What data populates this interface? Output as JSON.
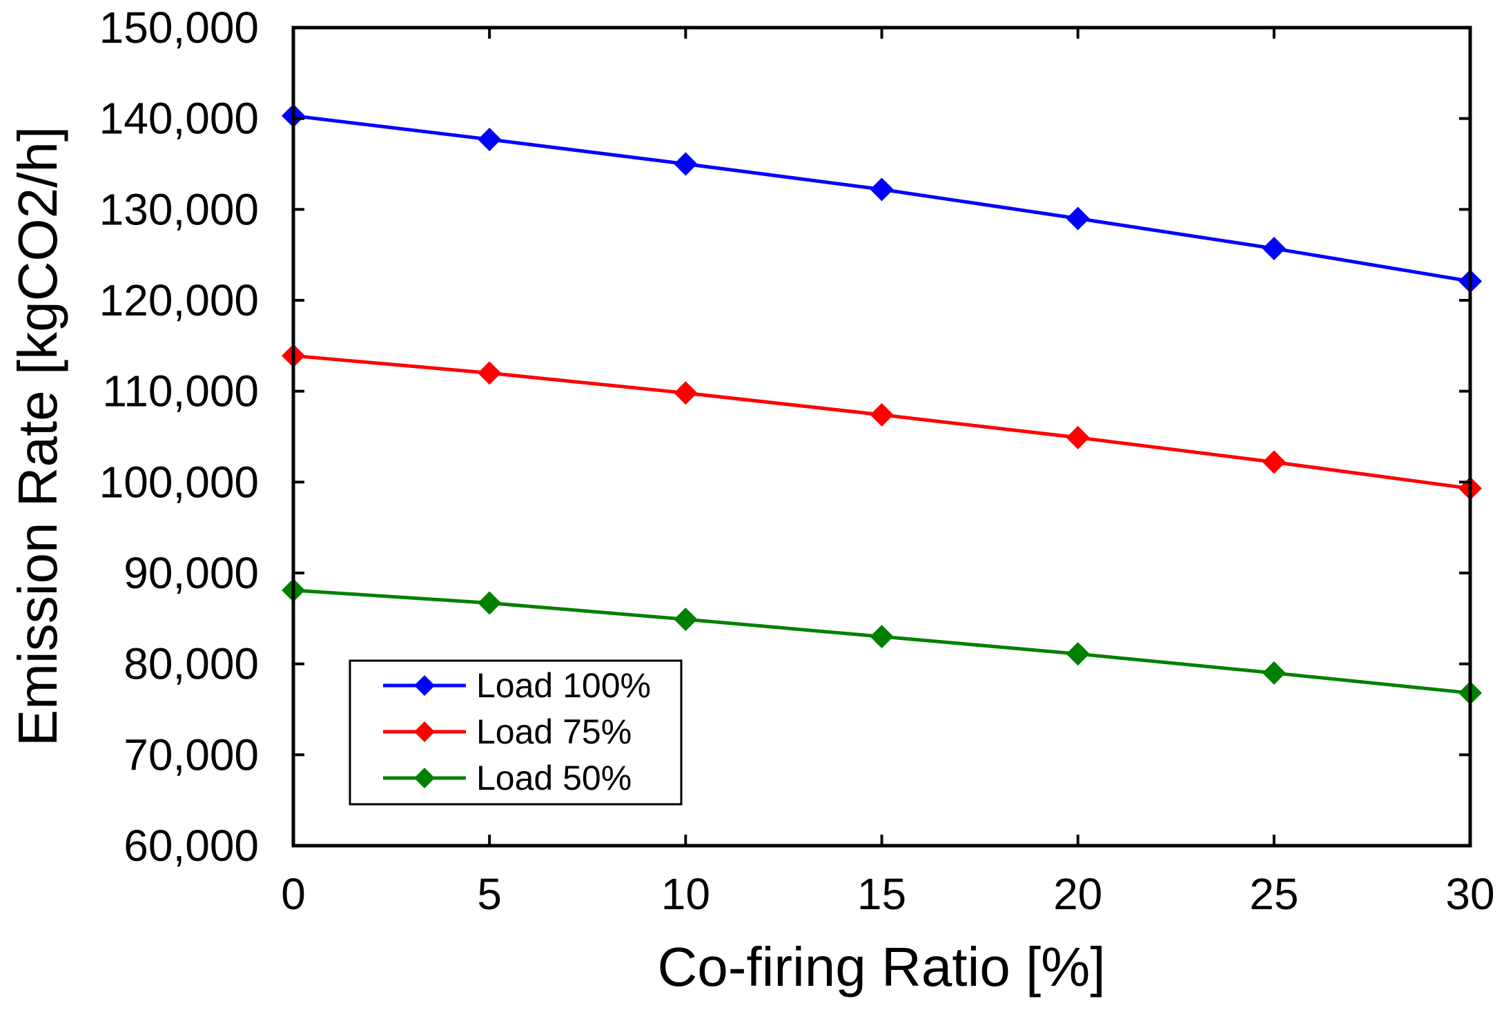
{
  "chart_data": {
    "type": "line",
    "title": "",
    "xlabel": "Co-firing Ratio [%]",
    "ylabel": "Emission Rate [kgCO2/h]",
    "x": [
      0,
      5,
      10,
      15,
      20,
      25,
      30
    ],
    "x_tick_labels": [
      "0",
      "5",
      "10",
      "15",
      "20",
      "25",
      "30"
    ],
    "xlim": [
      0,
      30
    ],
    "ylim": [
      60000,
      150000
    ],
    "y_ticks": [
      60000,
      70000,
      80000,
      90000,
      100000,
      110000,
      120000,
      130000,
      140000,
      150000
    ],
    "y_tick_labels": [
      "60,000",
      "70,000",
      "80,000",
      "90,000",
      "100,000",
      "110,000",
      "120,000",
      "130,000",
      "140,000",
      "150,000"
    ],
    "grid": false,
    "marker": "diamond",
    "legend_position": "bottom-left",
    "series": [
      {
        "name": "Load 100%",
        "color": "#0000FF",
        "values": [
          140300,
          137700,
          135000,
          132200,
          129000,
          125700,
          122100
        ]
      },
      {
        "name": "Load 75%",
        "color": "#FF0000",
        "values": [
          113900,
          112000,
          109800,
          107400,
          104900,
          102200,
          99300
        ]
      },
      {
        "name": "Load 50%",
        "color": "#008000",
        "values": [
          88100,
          86700,
          84900,
          83000,
          81100,
          79000,
          76800
        ]
      }
    ]
  }
}
